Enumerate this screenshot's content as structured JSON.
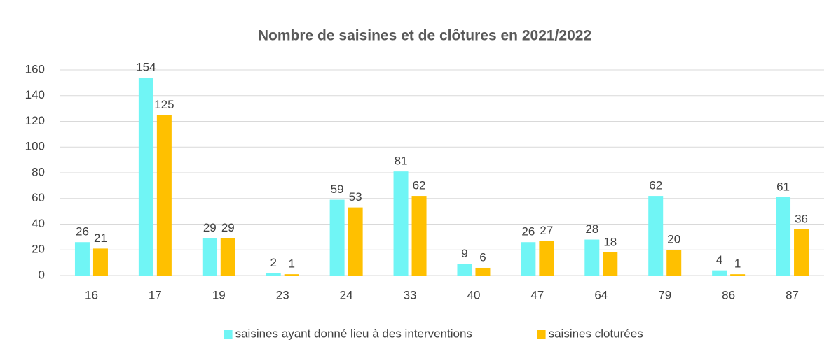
{
  "chart_data": {
    "type": "bar",
    "title": "Nombre de saisines et de clôtures en 2021/2022",
    "categories": [
      "16",
      "17",
      "19",
      "23",
      "24",
      "33",
      "40",
      "47",
      "64",
      "79",
      "86",
      "87"
    ],
    "series": [
      {
        "name": "saisines ayant donné lieu à des interventions",
        "color": "#70f5f5",
        "values": [
          26,
          154,
          29,
          2,
          59,
          81,
          9,
          26,
          28,
          62,
          4,
          61
        ]
      },
      {
        "name": "saisines cloturées",
        "color": "#ffc000",
        "values": [
          21,
          125,
          29,
          1,
          53,
          62,
          6,
          27,
          18,
          20,
          1,
          36
        ]
      }
    ],
    "ylim": [
      0,
      160
    ],
    "yticks": [
      0,
      20,
      40,
      60,
      80,
      100,
      120,
      140,
      160
    ],
    "grid": true,
    "legend": "bottom"
  }
}
